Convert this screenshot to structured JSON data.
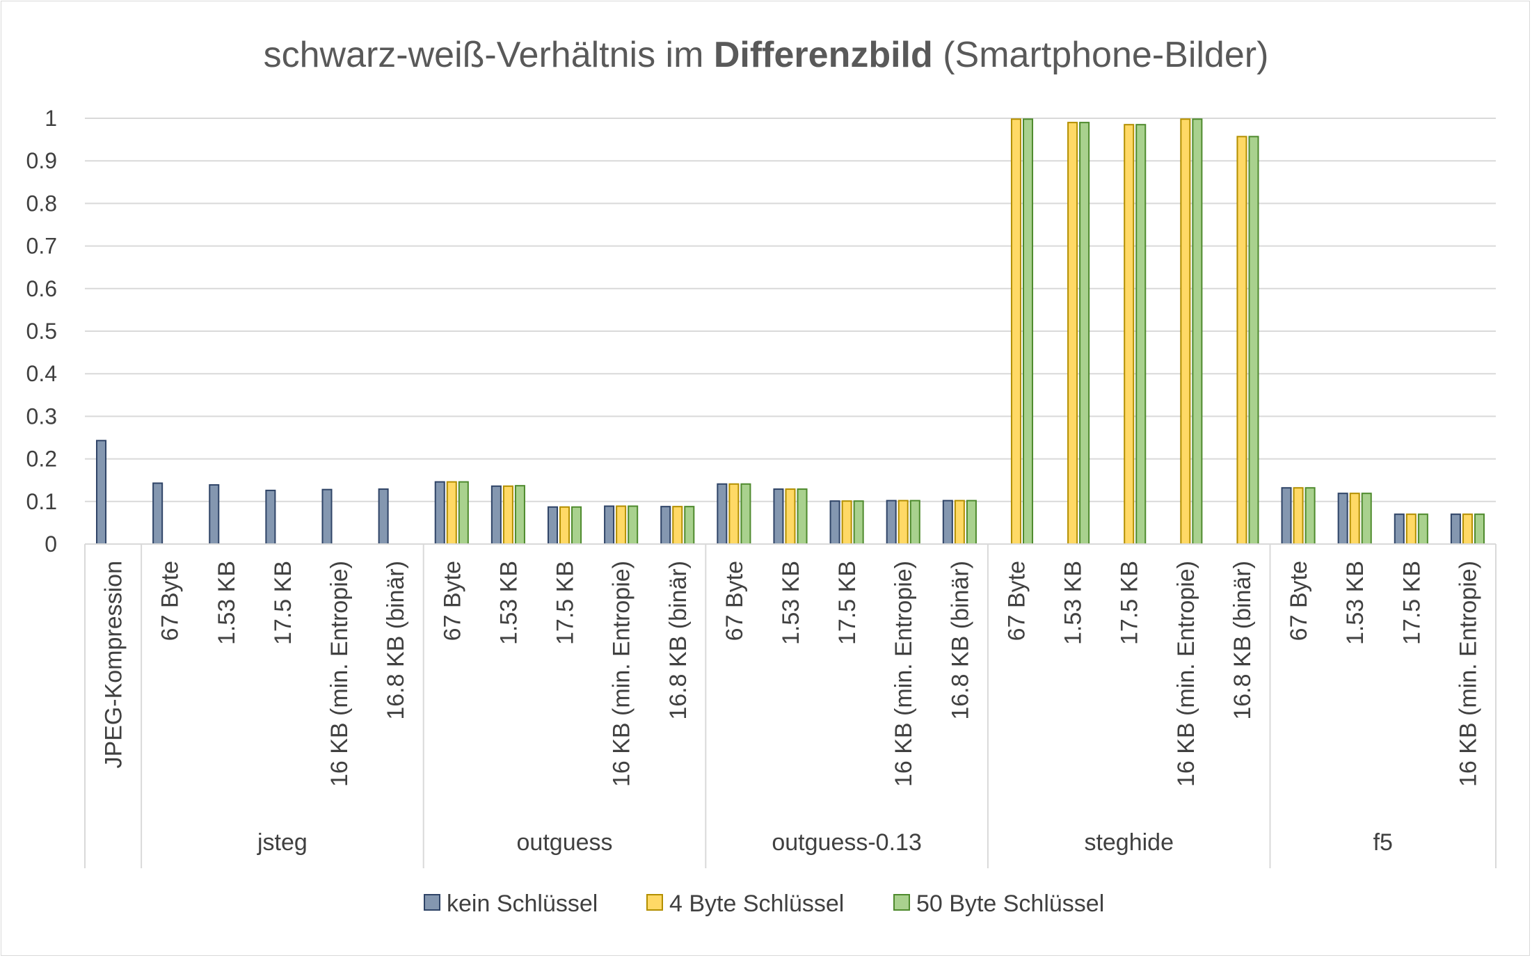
{
  "chart_data": {
    "type": "bar",
    "title": {
      "part1": "schwarz-weiß-Verhältnis im ",
      "bold": "Differenzbild",
      "part2": " (Smartphone-Bilder)"
    },
    "ylim": [
      0,
      1
    ],
    "yticks": [
      "0",
      "0.1",
      "0.2",
      "0.3",
      "0.4",
      "0.5",
      "0.6",
      "0.7",
      "0.8",
      "0.9",
      "1"
    ],
    "grid": true,
    "legend_position": "bottom",
    "colors": {
      "kein": "#8497b0",
      "kein_edge": "#2f4467",
      "four": "#ffd966",
      "four_edge": "#b38f00",
      "fifty": "#a9d18e",
      "fifty_edge": "#4e8a2d",
      "grid": "#d9d9d9",
      "axis": "#d9d9d9"
    },
    "series": [
      {
        "name": "kein Schlüssel"
      },
      {
        "name": "4 Byte Schlüssel"
      },
      {
        "name": "50 Byte Schlüssel"
      }
    ],
    "groups": [
      {
        "name": "",
        "categories": [
          {
            "label": "JPEG-Kompression",
            "values": [
              0.243,
              null,
              null
            ]
          }
        ]
      },
      {
        "name": "jsteg",
        "categories": [
          {
            "label": "67 Byte",
            "values": [
              0.143,
              null,
              null
            ]
          },
          {
            "label": "1.53 KB",
            "values": [
              0.139,
              null,
              null
            ]
          },
          {
            "label": "17.5 KB",
            "values": [
              0.126,
              null,
              null
            ]
          },
          {
            "label": "16 KB (min. Entropie)",
            "values": [
              0.128,
              null,
              null
            ]
          },
          {
            "label": "16.8 KB (binär)",
            "values": [
              0.129,
              null,
              null
            ]
          }
        ]
      },
      {
        "name": "outguess",
        "categories": [
          {
            "label": "67 Byte",
            "values": [
              0.146,
              0.146,
              0.146
            ]
          },
          {
            "label": "1.53 KB",
            "values": [
              0.136,
              0.136,
              0.137
            ]
          },
          {
            "label": "17.5 KB",
            "values": [
              0.087,
              0.087,
              0.087
            ]
          },
          {
            "label": "16 KB (min. Entropie)",
            "values": [
              0.089,
              0.089,
              0.089
            ]
          },
          {
            "label": "16.8 KB (binär)",
            "values": [
              0.088,
              0.088,
              0.088
            ]
          }
        ]
      },
      {
        "name": "outguess-0.13",
        "categories": [
          {
            "label": "67 Byte",
            "values": [
              0.141,
              0.141,
              0.141
            ]
          },
          {
            "label": "1.53 KB",
            "values": [
              0.129,
              0.129,
              0.129
            ]
          },
          {
            "label": "17.5 KB",
            "values": [
              0.101,
              0.101,
              0.101
            ]
          },
          {
            "label": "16 KB (min. Entropie)",
            "values": [
              0.102,
              0.102,
              0.102
            ]
          },
          {
            "label": "16.8 KB (binär)",
            "values": [
              0.102,
              0.102,
              0.102
            ]
          }
        ]
      },
      {
        "name": "steghide",
        "categories": [
          {
            "label": "67 Byte",
            "values": [
              null,
              0.998,
              0.998
            ]
          },
          {
            "label": "1.53 KB",
            "values": [
              null,
              0.99,
              0.99
            ]
          },
          {
            "label": "17.5 KB",
            "values": [
              null,
              0.985,
              0.985
            ]
          },
          {
            "label": "16 KB (min. Entropie)",
            "values": [
              null,
              0.998,
              0.998
            ]
          },
          {
            "label": "16.8 KB (binär)",
            "values": [
              null,
              0.957,
              0.957
            ]
          }
        ]
      },
      {
        "name": "f5",
        "categories": [
          {
            "label": "67 Byte",
            "values": [
              0.132,
              0.132,
              0.132
            ]
          },
          {
            "label": "1.53 KB",
            "values": [
              0.119,
              0.119,
              0.119
            ]
          },
          {
            "label": "17.5 KB",
            "values": [
              0.07,
              0.07,
              0.07
            ]
          },
          {
            "label": "16 KB (min. Entropie)",
            "values": [
              0.07,
              0.07,
              0.07
            ]
          }
        ]
      }
    ]
  }
}
